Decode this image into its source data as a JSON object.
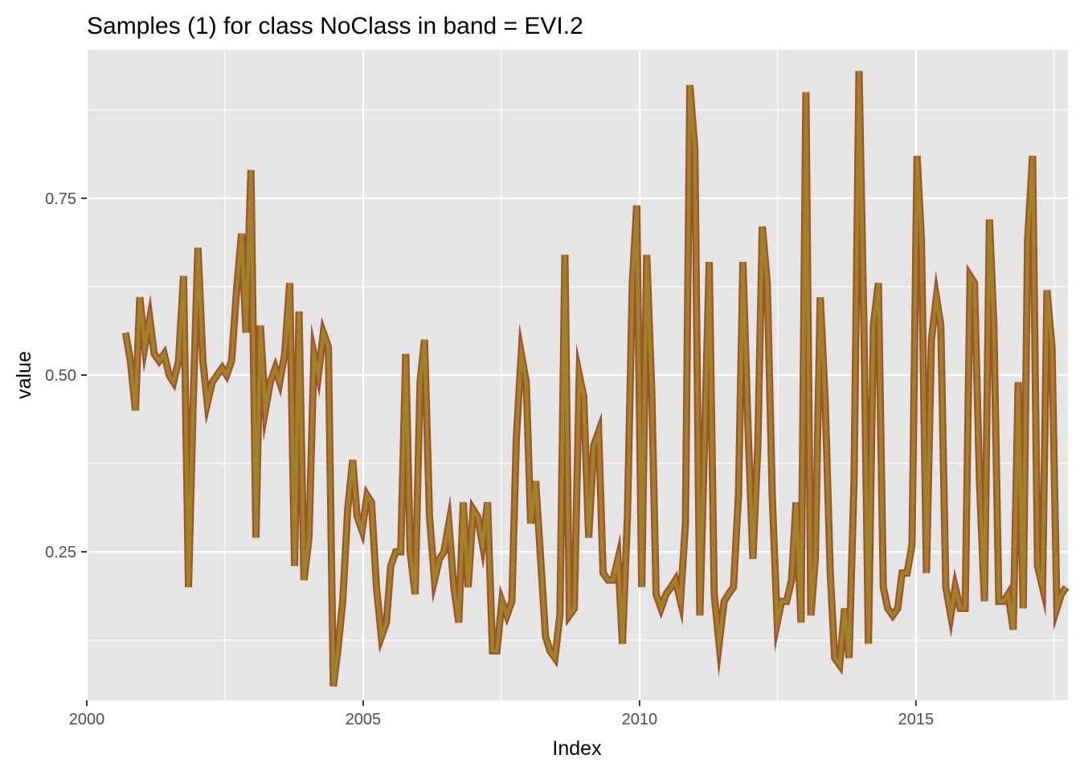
{
  "chart_data": {
    "type": "line",
    "title": "Samples (1) for class NoClass in band = EVI.2",
    "xlabel": "Index",
    "ylabel": "value",
    "xlim": [
      2000.0,
      2017.75
    ],
    "ylim": [
      0.04,
      0.96
    ],
    "x_ticks": [
      2000,
      2005,
      2010,
      2015
    ],
    "x_tick_labels": [
      "2000",
      "2005",
      "2010",
      "2015"
    ],
    "y_ticks": [
      0.25,
      0.5,
      0.75
    ],
    "y_tick_labels": [
      "0.25",
      "0.50",
      "0.75"
    ],
    "grid": true,
    "legend": "none",
    "colors": {
      "panel": "#e5e5e5",
      "grid": "#ffffff",
      "line_outer": "#a0522d",
      "line_inner": "#a08229",
      "tick": "#333333"
    },
    "series": [
      {
        "values": [
          [
            2000.7,
            0.56
          ],
          [
            2000.79,
            0.52
          ],
          [
            2000.88,
            0.45
          ],
          [
            2000.96,
            0.61
          ],
          [
            2001.05,
            0.54
          ],
          [
            2001.14,
            0.58
          ],
          [
            2001.22,
            0.53
          ],
          [
            2001.31,
            0.52
          ],
          [
            2001.4,
            0.53
          ],
          [
            2001.49,
            0.5
          ],
          [
            2001.57,
            0.49
          ],
          [
            2001.66,
            0.52
          ],
          [
            2001.75,
            0.64
          ],
          [
            2001.84,
            0.2
          ],
          [
            2001.92,
            0.45
          ],
          [
            2002.01,
            0.68
          ],
          [
            2002.1,
            0.52
          ],
          [
            2002.18,
            0.46
          ],
          [
            2002.27,
            0.49
          ],
          [
            2002.36,
            0.5
          ],
          [
            2002.45,
            0.51
          ],
          [
            2002.53,
            0.5
          ],
          [
            2002.62,
            0.52
          ],
          [
            2002.71,
            0.62
          ],
          [
            2002.8,
            0.7
          ],
          [
            2002.88,
            0.56
          ],
          [
            2002.97,
            0.79
          ],
          [
            2003.06,
            0.27
          ],
          [
            2003.14,
            0.57
          ],
          [
            2003.23,
            0.45
          ],
          [
            2003.32,
            0.49
          ],
          [
            2003.41,
            0.51
          ],
          [
            2003.49,
            0.49
          ],
          [
            2003.58,
            0.53
          ],
          [
            2003.67,
            0.63
          ],
          [
            2003.76,
            0.23
          ],
          [
            2003.84,
            0.59
          ],
          [
            2003.93,
            0.21
          ],
          [
            2004.02,
            0.27
          ],
          [
            2004.11,
            0.53
          ],
          [
            2004.19,
            0.5
          ],
          [
            2004.28,
            0.56
          ],
          [
            2004.37,
            0.54
          ],
          [
            2004.46,
            0.06
          ],
          [
            2004.54,
            0.11
          ],
          [
            2004.63,
            0.18
          ],
          [
            2004.72,
            0.31
          ],
          [
            2004.81,
            0.38
          ],
          [
            2004.89,
            0.3
          ],
          [
            2004.98,
            0.28
          ],
          [
            2005.07,
            0.33
          ],
          [
            2005.15,
            0.32
          ],
          [
            2005.24,
            0.2
          ],
          [
            2005.33,
            0.13
          ],
          [
            2005.42,
            0.15
          ],
          [
            2005.5,
            0.23
          ],
          [
            2005.59,
            0.25
          ],
          [
            2005.68,
            0.25
          ],
          [
            2005.77,
            0.53
          ],
          [
            2005.85,
            0.25
          ],
          [
            2005.94,
            0.19
          ],
          [
            2006.03,
            0.49
          ],
          [
            2006.11,
            0.55
          ],
          [
            2006.2,
            0.3
          ],
          [
            2006.29,
            0.21
          ],
          [
            2006.38,
            0.24
          ],
          [
            2006.46,
            0.25
          ],
          [
            2006.55,
            0.29
          ],
          [
            2006.64,
            0.2
          ],
          [
            2006.73,
            0.15
          ],
          [
            2006.81,
            0.32
          ],
          [
            2006.9,
            0.2
          ],
          [
            2006.99,
            0.31
          ],
          [
            2007.07,
            0.3
          ],
          [
            2007.16,
            0.26
          ],
          [
            2007.25,
            0.32
          ],
          [
            2007.34,
            0.11
          ],
          [
            2007.42,
            0.11
          ],
          [
            2007.51,
            0.18
          ],
          [
            2007.6,
            0.16
          ],
          [
            2007.69,
            0.18
          ],
          [
            2007.77,
            0.41
          ],
          [
            2007.86,
            0.53
          ],
          [
            2007.95,
            0.49
          ],
          [
            2008.03,
            0.29
          ],
          [
            2008.12,
            0.35
          ],
          [
            2008.21,
            0.24
          ],
          [
            2008.3,
            0.13
          ],
          [
            2008.38,
            0.11
          ],
          [
            2008.47,
            0.1
          ],
          [
            2008.56,
            0.16
          ],
          [
            2008.65,
            0.67
          ],
          [
            2008.73,
            0.16
          ],
          [
            2008.82,
            0.17
          ],
          [
            2008.91,
            0.5
          ],
          [
            2008.99,
            0.47
          ],
          [
            2009.08,
            0.27
          ],
          [
            2009.17,
            0.4
          ],
          [
            2009.26,
            0.42
          ],
          [
            2009.34,
            0.22
          ],
          [
            2009.43,
            0.21
          ],
          [
            2009.52,
            0.21
          ],
          [
            2009.61,
            0.24
          ],
          [
            2009.69,
            0.12
          ],
          [
            2009.78,
            0.3
          ],
          [
            2009.87,
            0.63
          ],
          [
            2009.95,
            0.74
          ],
          [
            2010.04,
            0.2
          ],
          [
            2010.13,
            0.67
          ],
          [
            2010.22,
            0.48
          ],
          [
            2010.3,
            0.19
          ],
          [
            2010.39,
            0.17
          ],
          [
            2010.48,
            0.19
          ],
          [
            2010.57,
            0.2
          ],
          [
            2010.65,
            0.21
          ],
          [
            2010.74,
            0.18
          ],
          [
            2010.83,
            0.29
          ],
          [
            2010.91,
            0.91
          ],
          [
            2011.0,
            0.82
          ],
          [
            2011.09,
            0.16
          ],
          [
            2011.18,
            0.42
          ],
          [
            2011.26,
            0.66
          ],
          [
            2011.35,
            0.19
          ],
          [
            2011.44,
            0.12
          ],
          [
            2011.53,
            0.18
          ],
          [
            2011.61,
            0.19
          ],
          [
            2011.7,
            0.2
          ],
          [
            2011.79,
            0.33
          ],
          [
            2011.87,
            0.66
          ],
          [
            2011.96,
            0.43
          ],
          [
            2012.05,
            0.24
          ],
          [
            2012.14,
            0.4
          ],
          [
            2012.22,
            0.71
          ],
          [
            2012.31,
            0.63
          ],
          [
            2012.4,
            0.33
          ],
          [
            2012.49,
            0.15
          ],
          [
            2012.57,
            0.18
          ],
          [
            2012.66,
            0.18
          ],
          [
            2012.75,
            0.21
          ],
          [
            2012.83,
            0.32
          ],
          [
            2012.92,
            0.15
          ],
          [
            2013.01,
            0.9
          ],
          [
            2013.1,
            0.16
          ],
          [
            2013.18,
            0.24
          ],
          [
            2013.27,
            0.61
          ],
          [
            2013.36,
            0.46
          ],
          [
            2013.45,
            0.22
          ],
          [
            2013.53,
            0.1
          ],
          [
            2013.62,
            0.09
          ],
          [
            2013.71,
            0.17
          ],
          [
            2013.79,
            0.1
          ],
          [
            2013.88,
            0.35
          ],
          [
            2013.97,
            0.93
          ],
          [
            2014.06,
            0.56
          ],
          [
            2014.14,
            0.12
          ],
          [
            2014.23,
            0.57
          ],
          [
            2014.32,
            0.63
          ],
          [
            2014.41,
            0.2
          ],
          [
            2014.49,
            0.17
          ],
          [
            2014.58,
            0.16
          ],
          [
            2014.67,
            0.17
          ],
          [
            2014.75,
            0.22
          ],
          [
            2014.84,
            0.22
          ],
          [
            2014.93,
            0.26
          ],
          [
            2015.02,
            0.81
          ],
          [
            2015.1,
            0.69
          ],
          [
            2015.19,
            0.22
          ],
          [
            2015.28,
            0.55
          ],
          [
            2015.37,
            0.61
          ],
          [
            2015.45,
            0.57
          ],
          [
            2015.54,
            0.2
          ],
          [
            2015.63,
            0.16
          ],
          [
            2015.71,
            0.2
          ],
          [
            2015.8,
            0.17
          ],
          [
            2015.89,
            0.17
          ],
          [
            2015.98,
            0.64
          ],
          [
            2016.06,
            0.63
          ],
          [
            2016.15,
            0.35
          ],
          [
            2016.24,
            0.18
          ],
          [
            2016.33,
            0.72
          ],
          [
            2016.41,
            0.57
          ],
          [
            2016.5,
            0.18
          ],
          [
            2016.59,
            0.18
          ],
          [
            2016.67,
            0.19
          ],
          [
            2016.76,
            0.14
          ],
          [
            2016.85,
            0.49
          ],
          [
            2016.94,
            0.17
          ],
          [
            2017.02,
            0.69
          ],
          [
            2017.11,
            0.81
          ],
          [
            2017.2,
            0.23
          ],
          [
            2017.29,
            0.2
          ],
          [
            2017.37,
            0.62
          ],
          [
            2017.46,
            0.54
          ],
          [
            2017.55,
            0.17
          ],
          [
            2017.63,
            0.19
          ],
          [
            2017.72,
            0.2
          ]
        ]
      }
    ]
  }
}
